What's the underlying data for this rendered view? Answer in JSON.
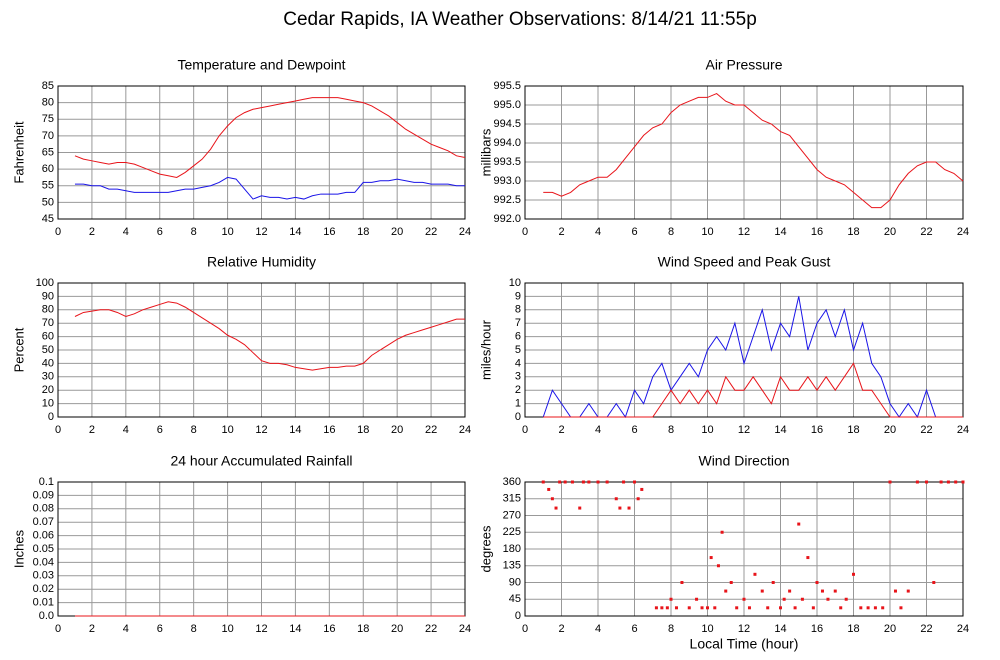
{
  "title": "Cedar Rapids, IA Weather Observations: 8/14/21 11:55p",
  "chart_data": [
    {
      "type": "line",
      "title": "Temperature and Dewpoint",
      "ylabel": "Fahrenheit",
      "grid": true,
      "xlim": [
        0,
        24
      ],
      "xticks": [
        0,
        2,
        4,
        6,
        8,
        10,
        12,
        14,
        16,
        18,
        20,
        22,
        24
      ],
      "ylim": [
        45,
        85
      ],
      "yticks": [
        45,
        50,
        55,
        60,
        65,
        70,
        75,
        80,
        85
      ],
      "x": [
        1,
        1.5,
        2,
        2.5,
        3,
        3.5,
        4,
        4.5,
        5,
        5.5,
        6,
        6.5,
        7,
        7.5,
        8,
        8.5,
        9,
        9.5,
        10,
        10.5,
        11,
        11.5,
        12,
        12.5,
        13,
        13.5,
        14,
        14.5,
        15,
        15.5,
        16,
        16.5,
        17,
        17.5,
        18,
        18.5,
        19,
        19.5,
        20,
        20.5,
        21,
        21.5,
        22,
        22.5,
        23,
        23.5,
        24
      ],
      "series": [
        {
          "color": "#e8141a",
          "values": [
            64,
            63,
            62.5,
            62,
            61.5,
            62,
            62,
            61.5,
            60.5,
            59.5,
            58.5,
            58,
            57.5,
            59,
            61,
            63,
            66,
            70,
            73,
            75.5,
            77,
            78,
            78.5,
            79,
            79.5,
            80,
            80.5,
            81,
            81.5,
            81.5,
            81.5,
            81.5,
            81,
            80.5,
            80,
            79,
            77.5,
            76,
            74,
            72,
            70.5,
            69,
            67.5,
            66.5,
            65.5,
            64,
            63.5
          ]
        },
        {
          "color": "#1a14e8",
          "values": [
            55.5,
            55.5,
            55,
            55,
            54,
            54,
            53.5,
            53,
            53,
            53,
            53,
            53,
            53.5,
            54,
            54,
            54.5,
            55,
            56,
            57.5,
            57,
            54,
            51,
            52,
            51.5,
            51.5,
            51,
            51.5,
            51,
            52,
            52.5,
            52.5,
            52.5,
            53,
            53,
            56,
            56,
            56.5,
            56.5,
            57,
            56.5,
            56,
            56,
            55.5,
            55.5,
            55.5,
            55,
            55
          ]
        }
      ]
    },
    {
      "type": "line",
      "title": "Air Pressure",
      "ylabel": "millibars",
      "grid": true,
      "xlim": [
        0,
        24
      ],
      "xticks": [
        0,
        2,
        4,
        6,
        8,
        10,
        12,
        14,
        16,
        18,
        20,
        22,
        24
      ],
      "ylim": [
        992,
        995.5
      ],
      "yticks": [
        {
          "value": 992,
          "label": "992.0"
        },
        992.5,
        {
          "value": 993,
          "label": "993.0"
        },
        993.5,
        {
          "value": 994,
          "label": "994.0"
        },
        994.5,
        {
          "value": 995,
          "label": "995.0"
        },
        995.5
      ],
      "x": [
        1,
        1.5,
        2,
        2.5,
        3,
        3.5,
        4,
        4.5,
        5,
        5.5,
        6,
        6.5,
        7,
        7.5,
        8,
        8.5,
        9,
        9.5,
        10,
        10.5,
        11,
        11.5,
        12,
        12.5,
        13,
        13.5,
        14,
        14.5,
        15,
        15.5,
        16,
        16.5,
        17,
        17.5,
        18,
        18.5,
        19,
        19.5,
        20,
        20.5,
        21,
        21.5,
        22,
        22.5,
        23,
        23.5,
        24
      ],
      "series": [
        {
          "color": "#e8141a",
          "values": [
            992.7,
            992.7,
            992.6,
            992.7,
            992.9,
            993.0,
            993.1,
            993.1,
            993.3,
            993.6,
            993.9,
            994.2,
            994.4,
            994.5,
            994.8,
            995.0,
            995.1,
            995.2,
            995.2,
            995.3,
            995.1,
            995.0,
            995.0,
            994.8,
            994.6,
            994.5,
            994.3,
            994.2,
            993.9,
            993.6,
            993.3,
            993.1,
            993.0,
            992.9,
            992.7,
            992.5,
            992.3,
            992.3,
            992.5,
            992.9,
            993.2,
            993.4,
            993.5,
            993.5,
            993.3,
            993.2,
            993.0
          ]
        }
      ]
    },
    {
      "type": "line",
      "title": "Relative Humidity",
      "ylabel": "Percent",
      "grid": true,
      "xlim": [
        0,
        24
      ],
      "xticks": [
        0,
        2,
        4,
        6,
        8,
        10,
        12,
        14,
        16,
        18,
        20,
        22,
        24
      ],
      "ylim": [
        0,
        100
      ],
      "yticks": [
        0,
        10,
        20,
        30,
        40,
        50,
        60,
        70,
        80,
        90,
        100
      ],
      "x": [
        1,
        1.5,
        2,
        2.5,
        3,
        3.5,
        4,
        4.5,
        5,
        5.5,
        6,
        6.5,
        7,
        7.5,
        8,
        8.5,
        9,
        9.5,
        10,
        10.5,
        11,
        11.5,
        12,
        12.5,
        13,
        13.5,
        14,
        14.5,
        15,
        15.5,
        16,
        16.5,
        17,
        17.5,
        18,
        18.5,
        19,
        19.5,
        20,
        20.5,
        21,
        21.5,
        22,
        22.5,
        23,
        23.5,
        24
      ],
      "series": [
        {
          "color": "#e8141a",
          "values": [
            75,
            78,
            79,
            80,
            80,
            78,
            75,
            77,
            80,
            82,
            84,
            86,
            85,
            82,
            78,
            74,
            70,
            66,
            61,
            58,
            54,
            48,
            42,
            40,
            40,
            39,
            37,
            36,
            35,
            36,
            37,
            37,
            38,
            38,
            40,
            46,
            50,
            54,
            58,
            61,
            63,
            65,
            67,
            69,
            71,
            73,
            73
          ]
        }
      ]
    },
    {
      "type": "line",
      "title": "Wind Speed and Peak Gust",
      "ylabel": "miles/hour",
      "grid": true,
      "xlim": [
        0,
        24
      ],
      "xticks": [
        0,
        2,
        4,
        6,
        8,
        10,
        12,
        14,
        16,
        18,
        20,
        22,
        24
      ],
      "ylim": [
        0,
        10
      ],
      "yticks": [
        0,
        1,
        2,
        3,
        4,
        5,
        6,
        7,
        8,
        9,
        10
      ],
      "x": [
        1,
        1.5,
        2,
        2.5,
        3,
        3.5,
        4,
        4.5,
        5,
        5.5,
        6,
        6.5,
        7,
        7.5,
        8,
        8.5,
        9,
        9.5,
        10,
        10.5,
        11,
        11.5,
        12,
        12.5,
        13,
        13.5,
        14,
        14.5,
        15,
        15.5,
        16,
        16.5,
        17,
        17.5,
        18,
        18.5,
        19,
        19.5,
        20,
        20.5,
        21,
        21.5,
        22,
        22.5,
        23,
        23.5,
        24
      ],
      "series": [
        {
          "color": "#1a14e8",
          "values": [
            0,
            2,
            1,
            0,
            0,
            1,
            0,
            0,
            1,
            0,
            2,
            1,
            3,
            4,
            2,
            3,
            4,
            3,
            5,
            6,
            5,
            7,
            4,
            6,
            8,
            5,
            7,
            6,
            9,
            5,
            7,
            8,
            6,
            8,
            5,
            7,
            4,
            3,
            1,
            0,
            1,
            0,
            2,
            0,
            0,
            0,
            0
          ]
        },
        {
          "color": "#e8141a",
          "values": [
            0,
            0,
            0,
            0,
            0,
            0,
            0,
            0,
            0,
            0,
            0,
            0,
            0,
            1,
            2,
            1,
            2,
            1,
            2,
            1,
            3,
            2,
            2,
            3,
            2,
            1,
            3,
            2,
            2,
            3,
            2,
            3,
            2,
            3,
            4,
            2,
            2,
            1,
            0,
            0,
            0,
            0,
            0,
            0,
            0,
            0,
            0
          ]
        }
      ]
    },
    {
      "type": "line",
      "title": "24 hour Accumulated Rainfall",
      "ylabel": "Inches",
      "grid": true,
      "xlim": [
        0,
        24
      ],
      "xticks": [
        0,
        2,
        4,
        6,
        8,
        10,
        12,
        14,
        16,
        18,
        20,
        22,
        24
      ],
      "ylim": [
        0,
        0.1
      ],
      "yticks": [
        {
          "value": 0,
          "label": "0.0"
        },
        0.01,
        0.02,
        0.03,
        0.04,
        0.05,
        0.06,
        0.07,
        0.08,
        0.09,
        0.1
      ],
      "x": [
        1,
        24
      ],
      "series": [
        {
          "color": "#e8141a",
          "values": [
            0,
            0
          ]
        }
      ]
    },
    {
      "type": "scatter",
      "title": "Wind Direction",
      "ylabel": "degrees",
      "xlabel": "Local Time (hour)",
      "grid": true,
      "xlim": [
        0,
        24
      ],
      "xticks": [
        0,
        2,
        4,
        6,
        8,
        10,
        12,
        14,
        16,
        18,
        20,
        22,
        24
      ],
      "ylim": [
        0,
        360
      ],
      "yticks": [
        0,
        45,
        90,
        135,
        180,
        225,
        270,
        315,
        360
      ],
      "x": [
        1,
        1.3,
        1.5,
        1.7,
        1.9,
        2.2,
        2.6,
        3,
        3.2,
        3.5,
        4,
        4.5,
        5,
        5.2,
        5.4,
        5.7,
        6,
        6.2,
        6.4,
        7.2,
        7.5,
        7.8,
        8,
        8.3,
        8.6,
        9,
        9.4,
        9.7,
        10,
        10.2,
        10.4,
        10.6,
        10.8,
        11,
        11.3,
        11.6,
        12,
        12.3,
        12.6,
        13,
        13.3,
        13.6,
        14,
        14.2,
        14.5,
        14.8,
        15,
        15.2,
        15.5,
        15.8,
        16,
        16.3,
        16.6,
        17,
        17.3,
        17.6,
        18,
        18.4,
        18.8,
        19.2,
        19.6,
        20,
        20.3,
        20.6,
        21,
        21.5,
        22,
        22.4,
        22.8,
        23.2,
        23.6,
        24
      ],
      "series": [
        {
          "color": "#e8141a",
          "values": [
            360,
            340,
            315,
            290,
            360,
            360,
            360,
            290,
            360,
            360,
            360,
            360,
            315,
            290,
            360,
            290,
            360,
            315,
            340,
            22,
            22,
            22,
            45,
            22,
            90,
            22,
            45,
            22,
            22,
            157,
            22,
            135,
            225,
            67,
            90,
            22,
            45,
            22,
            112,
            67,
            22,
            90,
            22,
            45,
            67,
            22,
            247,
            45,
            157,
            22,
            90,
            67,
            45,
            67,
            22,
            45,
            112,
            22,
            22,
            22,
            22,
            360,
            67,
            22,
            67,
            360,
            360,
            90,
            360,
            360,
            360,
            360
          ]
        }
      ]
    }
  ]
}
